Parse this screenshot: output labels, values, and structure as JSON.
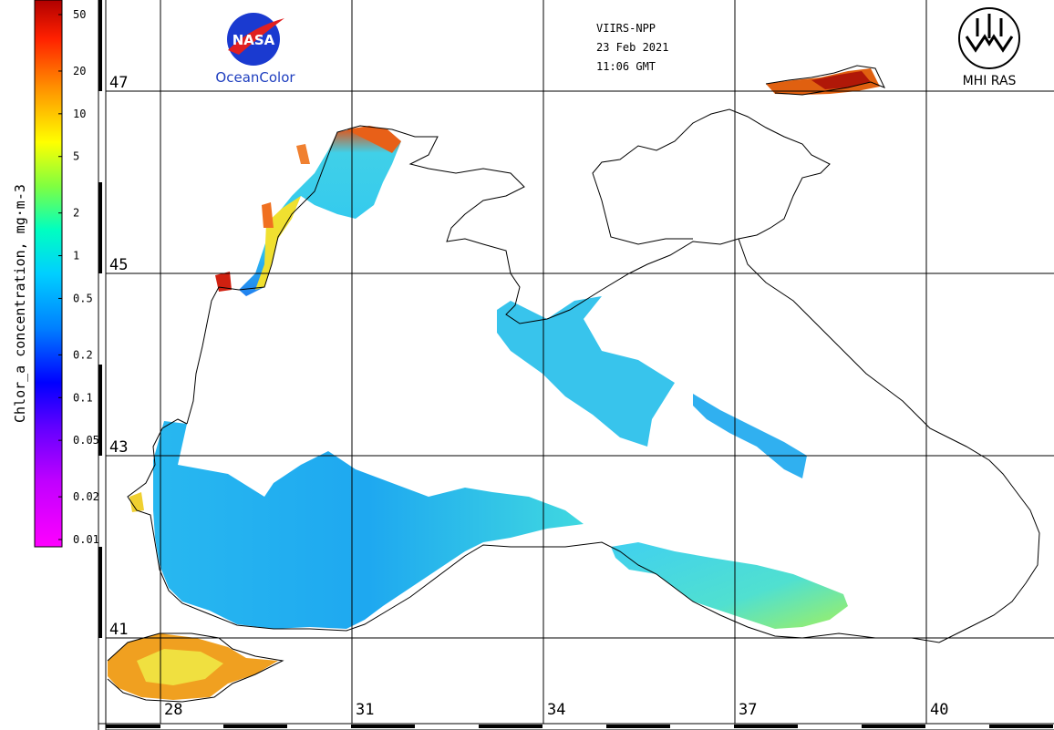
{
  "header": {
    "sensor": "VIIRS-NPP",
    "date": "23 Feb 2021",
    "time": "11:06 GMT"
  },
  "logos": {
    "nasa_text": "NASA",
    "oceancolor": "OceanColor",
    "mhi": "MHI RAS"
  },
  "colorbar": {
    "title": "Chlor_a concentration, mg·m-3",
    "ticks": [
      "50",
      "20",
      "10",
      "5",
      "2",
      "1",
      "0.5",
      "0.2",
      "0.1",
      "0.05",
      "0.02",
      "0.01"
    ],
    "scale": "log",
    "colors": [
      "#ff00ff",
      "#8000ff",
      "#0000ff",
      "#00c8ff",
      "#00ffd0",
      "#80ff00",
      "#ffff00",
      "#ff8000",
      "#ff0000",
      "#a00000"
    ]
  },
  "grid": {
    "lat_labels": [
      "47",
      "45",
      "43",
      "41"
    ],
    "lon_labels": [
      "28",
      "31",
      "34",
      "37",
      "40"
    ]
  },
  "legend_colors": {
    "low": "#1ea0f0",
    "mid": "#30d8e8",
    "high": "#f0e020",
    "very_high": "#e04010"
  }
}
